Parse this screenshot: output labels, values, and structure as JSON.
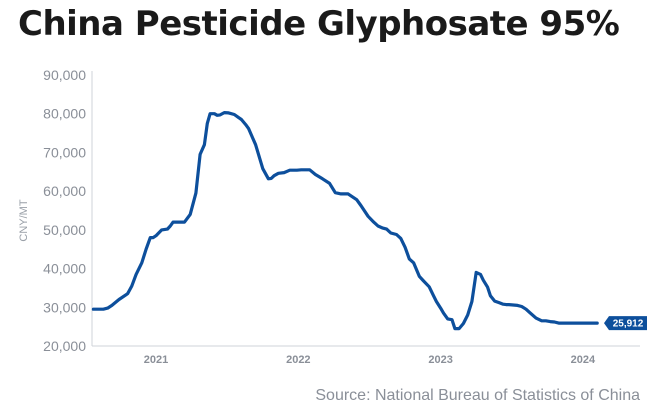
{
  "chart_data": {
    "type": "line",
    "title": "China Pesticide Glyphosate 95%",
    "ylabel": "CNY/MT",
    "xlabel": "",
    "ylim": [
      20000,
      90000
    ],
    "xlim": [
      2020.55,
      2024.12
    ],
    "yticks": [
      "20,000",
      "30,000",
      "40,000",
      "50,000",
      "60,000",
      "70,000",
      "80,000",
      "90,000"
    ],
    "ytick_values": [
      20000,
      30000,
      40000,
      50000,
      60000,
      70000,
      80000,
      90000
    ],
    "xticks": [
      "2021",
      "2022",
      "2023",
      "2024"
    ],
    "xtick_values": [
      2021.0,
      2022.0,
      2023.0,
      2024.0
    ],
    "grid": false,
    "line_color": "#0d4f9c",
    "last_value_label": "25,912",
    "series": [
      {
        "x": [
          2020.56,
          2020.63,
          2020.66,
          2020.69,
          2020.74,
          2020.8,
          2020.83,
          2020.86,
          2020.9,
          2020.93,
          2020.96,
          2020.98,
          2021.0,
          2021.04,
          2021.08,
          2021.1,
          2021.12,
          2021.16,
          2021.2,
          2021.24,
          2021.28,
          2021.31,
          2021.34,
          2021.36,
          2021.38,
          2021.41,
          2021.43,
          2021.45,
          2021.48,
          2021.51,
          2021.55,
          2021.58,
          2021.6,
          2021.63,
          2021.65,
          2021.7,
          2021.75,
          2021.79,
          2021.81,
          2021.83,
          2021.86,
          2021.9,
          2021.94,
          2021.99,
          2022.02,
          2022.08,
          2022.12,
          2022.17,
          2022.22,
          2022.26,
          2022.3,
          2022.35,
          2022.41,
          2022.44,
          2022.49,
          2022.53,
          2022.56,
          2022.59,
          2022.62,
          2022.65,
          2022.69,
          2022.72,
          2022.75,
          2022.78,
          2022.81,
          2022.85,
          2022.88,
          2022.92,
          2022.95,
          2022.97,
          2023.0,
          2023.02,
          2023.05,
          2023.08,
          2023.1,
          2023.13,
          2023.16,
          2023.19,
          2023.22,
          2023.25,
          2023.28,
          2023.3,
          2023.33,
          2023.35,
          2023.38,
          2023.41,
          2023.44,
          2023.46,
          2023.48,
          2023.51,
          2023.54,
          2023.57,
          2023.6,
          2023.63,
          2023.67,
          2023.71,
          2023.74,
          2023.77,
          2023.8,
          2023.83,
          2023.87,
          2023.9,
          2023.93,
          2023.97,
          2024.0,
          2024.05,
          2024.1
        ],
        "values": [
          29500,
          29500,
          29800,
          30500,
          32000,
          33500,
          35500,
          38500,
          41500,
          45000,
          48000,
          48000,
          48500,
          50000,
          50200,
          51000,
          52000,
          52000,
          52000,
          54000,
          59500,
          69500,
          72000,
          77500,
          80000,
          80000,
          79600,
          79700,
          80300,
          80200,
          79800,
          79000,
          78500,
          77200,
          76200,
          72000,
          65800,
          63200,
          63300,
          64000,
          64600,
          64800,
          65400,
          65400,
          65500,
          65500,
          64300,
          63200,
          62000,
          59600,
          59300,
          59300,
          57800,
          56300,
          53500,
          52000,
          51000,
          50500,
          50200,
          49200,
          48800,
          47800,
          45500,
          42500,
          41500,
          38000,
          36800,
          35300,
          33000,
          31500,
          29800,
          28500,
          27000,
          26800,
          24500,
          24500,
          25800,
          28000,
          31500,
          39000,
          38500,
          37000,
          35200,
          33000,
          31600,
          31200,
          30800,
          30700,
          30700,
          30600,
          30500,
          30200,
          29500,
          28500,
          27200,
          26500,
          26500,
          26300,
          26200,
          25912,
          25912,
          25912,
          25912,
          25912,
          25912,
          25912,
          25912
        ]
      }
    ]
  },
  "source": "Source: National Bureau of Statistics of China"
}
